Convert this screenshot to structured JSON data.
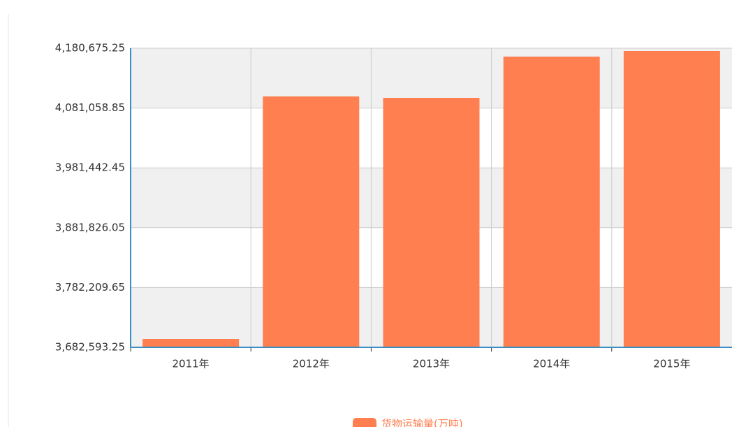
{
  "chart_data": {
    "type": "bar",
    "categories": [
      "2011年",
      "2012年",
      "2013年",
      "2014年",
      "2015年"
    ],
    "series": [
      {
        "name": "货物运输量(万吨)",
        "color": "#ff7f50",
        "values": [
          3696557,
          4100373,
          4098046,
          4166707,
          4176017
        ]
      }
    ],
    "ylim": [
      3682593.25,
      4180675.25
    ],
    "yticks": [
      {
        "value": 3682593.25,
        "label": "3,682,593.25"
      },
      {
        "value": 3782209.65,
        "label": "3,782,209.65"
      },
      {
        "value": 3881826.05,
        "label": "3,881,826.05"
      },
      {
        "value": 3981442.45,
        "label": "3,981,442.45"
      },
      {
        "value": 4081058.85,
        "label": "4,081,058.85"
      },
      {
        "value": 4180675.25,
        "label": "4,180,675.25"
      }
    ],
    "grid": true,
    "legend": "bottom"
  }
}
